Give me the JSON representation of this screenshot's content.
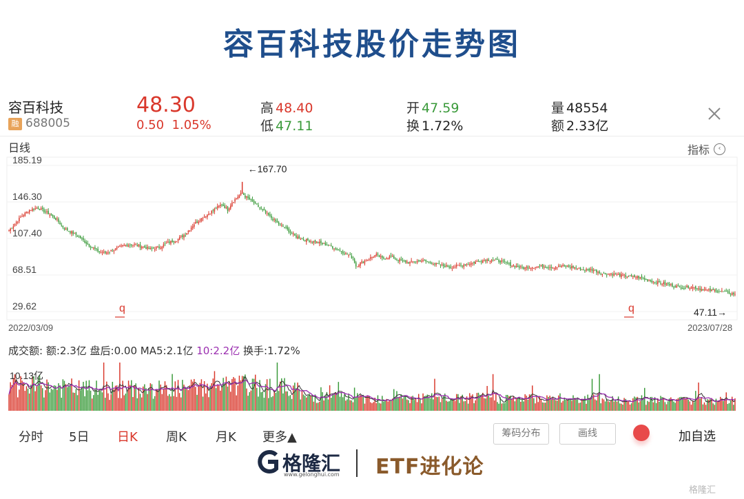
{
  "page_title": "容百科技股价走势图",
  "quote": {
    "name": "容百科技",
    "badge": "融",
    "code": "688005",
    "last_price": "48.30",
    "change": "0.50",
    "change_pct": "1.05%",
    "high_label": "高",
    "high": "48.40",
    "low_label": "低",
    "low": "47.11",
    "open_label": "开",
    "open": "47.59",
    "turnover_label": "换",
    "turnover": "1.72%",
    "volume_label": "量",
    "volume": "48554",
    "amount_label": "额",
    "amount": "2.33亿",
    "close_icon": "close-icon"
  },
  "chart_header": {
    "period_label": "日线",
    "indicator_label": "指标",
    "indicator_icon": "chevron-left-circle-icon"
  },
  "chart_data": {
    "type": "candlestick",
    "y_ticks": [
      "185.19",
      "146.30",
      "107.40",
      "68.51",
      "29.62"
    ],
    "ylim": [
      29.62,
      185.19
    ],
    "start_date": "2022/03/09",
    "end_date": "2023/07/28",
    "max_annotation": "←167.70",
    "min_annotation": "47.11→",
    "max_value": 167.7,
    "min_value": 47.11,
    "marker_glyph": "q",
    "colors": {
      "up": "#d9372b",
      "down": "#3a9a3a",
      "ma5": "#333333",
      "ma10": "#9b2fb0"
    },
    "close_keypoints": [
      [
        0,
        116
      ],
      [
        8,
        130
      ],
      [
        14,
        138
      ],
      [
        20,
        140
      ],
      [
        27,
        134
      ],
      [
        33,
        127
      ],
      [
        38,
        118
      ],
      [
        43,
        114
      ],
      [
        49,
        108
      ],
      [
        55,
        100
      ],
      [
        61,
        94
      ],
      [
        66,
        92
      ],
      [
        73,
        96
      ],
      [
        79,
        100
      ],
      [
        85,
        101
      ],
      [
        91,
        99
      ],
      [
        97,
        96
      ],
      [
        103,
        98
      ],
      [
        109,
        103
      ],
      [
        115,
        106
      ],
      [
        121,
        112
      ],
      [
        127,
        123
      ],
      [
        134,
        131
      ],
      [
        140,
        137
      ],
      [
        146,
        144
      ],
      [
        150,
        138
      ],
      [
        153,
        146
      ],
      [
        157,
        152
      ],
      [
        160,
        156
      ],
      [
        162,
        152
      ],
      [
        166,
        148
      ],
      [
        172,
        140
      ],
      [
        178,
        132
      ],
      [
        184,
        124
      ],
      [
        190,
        118
      ],
      [
        196,
        110
      ],
      [
        203,
        106
      ],
      [
        210,
        104
      ],
      [
        217,
        101
      ],
      [
        224,
        97
      ],
      [
        230,
        92
      ],
      [
        236,
        87
      ],
      [
        238,
        78
      ],
      [
        242,
        82
      ],
      [
        247,
        86
      ],
      [
        252,
        90
      ],
      [
        256,
        86
      ],
      [
        262,
        88
      ],
      [
        268,
        84
      ],
      [
        275,
        82
      ],
      [
        282,
        84
      ],
      [
        289,
        82
      ],
      [
        296,
        79
      ],
      [
        303,
        77
      ],
      [
        310,
        79
      ],
      [
        317,
        81
      ],
      [
        324,
        84
      ],
      [
        331,
        85
      ],
      [
        338,
        83
      ],
      [
        345,
        79
      ],
      [
        352,
        76
      ],
      [
        359,
        77
      ],
      [
        366,
        78
      ],
      [
        373,
        77
      ],
      [
        380,
        78
      ],
      [
        387,
        77
      ],
      [
        394,
        74
      ],
      [
        401,
        74
      ],
      [
        407,
        70
      ],
      [
        413,
        70
      ],
      [
        420,
        68
      ],
      [
        426,
        67
      ],
      [
        432,
        66
      ],
      [
        438,
        63
      ],
      [
        444,
        61
      ],
      [
        450,
        59
      ],
      [
        456,
        57
      ],
      [
        462,
        55
      ],
      [
        468,
        56
      ],
      [
        474,
        54
      ],
      [
        480,
        52
      ],
      [
        486,
        52
      ],
      [
        492,
        50
      ],
      [
        498,
        48.3
      ]
    ]
  },
  "volume": {
    "label": "成交额:",
    "amount": "额:2.3亿",
    "after_hours": "盘后:0.00",
    "ma5": "MA5:2.1亿",
    "ma10": "10:2.2亿",
    "turnover": "换手:1.72%",
    "axis_max": "10.13亿"
  },
  "period_tabs": [
    {
      "label": "分时",
      "active": false
    },
    {
      "label": "5日",
      "active": false
    },
    {
      "label": "日K",
      "active": true
    },
    {
      "label": "周K",
      "active": false
    },
    {
      "label": "月K",
      "active": false
    },
    {
      "label": "更多▲",
      "active": false
    }
  ],
  "tools": {
    "chip_distribution": "筹码分布",
    "draw_line": "画线",
    "add_watchlist": "加自选"
  },
  "footer": {
    "logo_icon": "gelonghui-logo-icon",
    "brand": "格隆汇",
    "url": "www.gelonghui.com",
    "etf_brand": "ETF进化论",
    "watermark": "格隆汇"
  }
}
